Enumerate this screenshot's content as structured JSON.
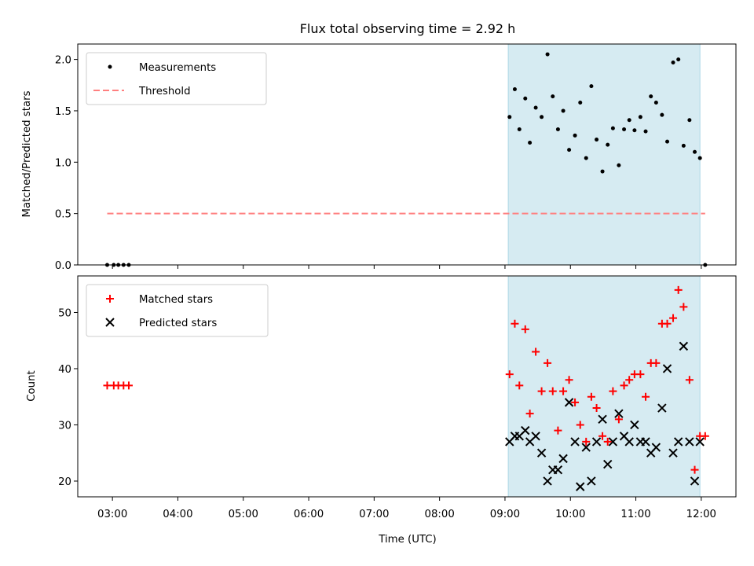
{
  "chart_data": {
    "title": "Flux total observing time = 2.92 h",
    "xlabel": "Time (UTC)",
    "x_unit": "hours (UTC)",
    "x_range": [
      2.47,
      12.53
    ],
    "x_ticks": [
      {
        "value": 3,
        "label": "03:00"
      },
      {
        "value": 4,
        "label": "04:00"
      },
      {
        "value": 5,
        "label": "05:00"
      },
      {
        "value": 6,
        "label": "06:00"
      },
      {
        "value": 7,
        "label": "07:00"
      },
      {
        "value": 8,
        "label": "08:00"
      },
      {
        "value": 9,
        "label": "09:00"
      },
      {
        "value": 10,
        "label": "10:00"
      },
      {
        "value": 11,
        "label": "11:00"
      },
      {
        "value": 12,
        "label": "12:00"
      }
    ],
    "observing_window": {
      "start": 9.05,
      "end": 11.98,
      "color": "#add8e6"
    },
    "panels": [
      {
        "type": "scatter",
        "ylabel": "Matched/Predicted stars",
        "ylim": [
          0,
          2.15
        ],
        "yticks": [
          {
            "value": 0,
            "label": "0.0"
          },
          {
            "value": 0.5,
            "label": "0.5"
          },
          {
            "value": 1.0,
            "label": "1.0"
          },
          {
            "value": 1.5,
            "label": "1.5"
          },
          {
            "value": 2.0,
            "label": "2.0"
          }
        ],
        "legend_position": "upper-left",
        "series": [
          {
            "name": "Measurements",
            "marker": "dot",
            "color": "#000000",
            "points": [
              [
                2.92,
                0.0
              ],
              [
                3.02,
                0.0
              ],
              [
                3.09,
                0.0
              ],
              [
                3.17,
                0.0
              ],
              [
                3.25,
                0.0
              ],
              [
                9.07,
                1.44
              ],
              [
                9.15,
                1.71
              ],
              [
                9.22,
                1.32
              ],
              [
                9.31,
                1.62
              ],
              [
                9.38,
                1.19
              ],
              [
                9.47,
                1.53
              ],
              [
                9.56,
                1.44
              ],
              [
                9.65,
                2.05
              ],
              [
                9.73,
                1.64
              ],
              [
                9.81,
                1.32
              ],
              [
                9.89,
                1.5
              ],
              [
                9.98,
                1.12
              ],
              [
                10.07,
                1.26
              ],
              [
                10.15,
                1.58
              ],
              [
                10.24,
                1.04
              ],
              [
                10.32,
                1.74
              ],
              [
                10.4,
                1.22
              ],
              [
                10.49,
                0.91
              ],
              [
                10.57,
                1.17
              ],
              [
                10.65,
                1.33
              ],
              [
                10.74,
                0.97
              ],
              [
                10.82,
                1.32
              ],
              [
                10.9,
                1.41
              ],
              [
                10.98,
                1.31
              ],
              [
                11.07,
                1.44
              ],
              [
                11.15,
                1.3
              ],
              [
                11.23,
                1.64
              ],
              [
                11.31,
                1.58
              ],
              [
                11.4,
                1.46
              ],
              [
                11.48,
                1.2
              ],
              [
                11.57,
                1.97
              ],
              [
                11.65,
                2.0
              ],
              [
                11.73,
                1.16
              ],
              [
                11.82,
                1.41
              ],
              [
                11.9,
                1.1
              ],
              [
                11.98,
                1.04
              ],
              [
                12.06,
                0.0
              ]
            ]
          },
          {
            "name": "Threshold",
            "marker": "dashed-line",
            "color": "#ff7f7f",
            "points": [
              [
                2.92,
                0.5
              ],
              [
                12.06,
                0.5
              ]
            ]
          }
        ]
      },
      {
        "type": "scatter",
        "ylabel": "Count",
        "ylim": [
          17.2,
          56.5
        ],
        "yticks": [
          {
            "value": 20,
            "label": "20"
          },
          {
            "value": 30,
            "label": "30"
          },
          {
            "value": 40,
            "label": "40"
          },
          {
            "value": 50,
            "label": "50"
          }
        ],
        "legend_position": "upper-left",
        "series": [
          {
            "name": "Matched stars",
            "marker": "plus",
            "color": "#ff0000",
            "points": [
              [
                2.92,
                37
              ],
              [
                3.02,
                37
              ],
              [
                3.09,
                37
              ],
              [
                3.17,
                37
              ],
              [
                3.25,
                37
              ],
              [
                9.07,
                39
              ],
              [
                9.15,
                48
              ],
              [
                9.22,
                37
              ],
              [
                9.31,
                47
              ],
              [
                9.38,
                32
              ],
              [
                9.47,
                43
              ],
              [
                9.56,
                36
              ],
              [
                9.65,
                41
              ],
              [
                9.73,
                36
              ],
              [
                9.81,
                29
              ],
              [
                9.89,
                36
              ],
              [
                9.98,
                38
              ],
              [
                10.07,
                34
              ],
              [
                10.15,
                30
              ],
              [
                10.24,
                27
              ],
              [
                10.32,
                35
              ],
              [
                10.4,
                33
              ],
              [
                10.49,
                28
              ],
              [
                10.57,
                27
              ],
              [
                10.65,
                36
              ],
              [
                10.74,
                31
              ],
              [
                10.82,
                37
              ],
              [
                10.9,
                38
              ],
              [
                10.98,
                39
              ],
              [
                11.07,
                39
              ],
              [
                11.15,
                35
              ],
              [
                11.23,
                41
              ],
              [
                11.31,
                41
              ],
              [
                11.4,
                48
              ],
              [
                11.48,
                48
              ],
              [
                11.57,
                49
              ],
              [
                11.65,
                54
              ],
              [
                11.73,
                51
              ],
              [
                11.82,
                38
              ],
              [
                11.9,
                22
              ],
              [
                11.98,
                28
              ],
              [
                12.06,
                28
              ]
            ]
          },
          {
            "name": "Predicted stars",
            "marker": "x",
            "color": "#000000",
            "points": [
              [
                9.07,
                27
              ],
              [
                9.15,
                28
              ],
              [
                9.22,
                28
              ],
              [
                9.31,
                29
              ],
              [
                9.38,
                27
              ],
              [
                9.47,
                28
              ],
              [
                9.56,
                25
              ],
              [
                9.65,
                20
              ],
              [
                9.73,
                22
              ],
              [
                9.81,
                22
              ],
              [
                9.89,
                24
              ],
              [
                9.98,
                34
              ],
              [
                10.07,
                27
              ],
              [
                10.15,
                19
              ],
              [
                10.24,
                26
              ],
              [
                10.32,
                20
              ],
              [
                10.4,
                27
              ],
              [
                10.49,
                31
              ],
              [
                10.57,
                23
              ],
              [
                10.65,
                27
              ],
              [
                10.74,
                32
              ],
              [
                10.82,
                28
              ],
              [
                10.9,
                27
              ],
              [
                10.98,
                30
              ],
              [
                11.07,
                27
              ],
              [
                11.15,
                27
              ],
              [
                11.23,
                25
              ],
              [
                11.31,
                26
              ],
              [
                11.4,
                33
              ],
              [
                11.48,
                40
              ],
              [
                11.57,
                25
              ],
              [
                11.65,
                27
              ],
              [
                11.73,
                44
              ],
              [
                11.82,
                27
              ],
              [
                11.9,
                20
              ],
              [
                11.98,
                27
              ]
            ]
          }
        ]
      }
    ]
  }
}
